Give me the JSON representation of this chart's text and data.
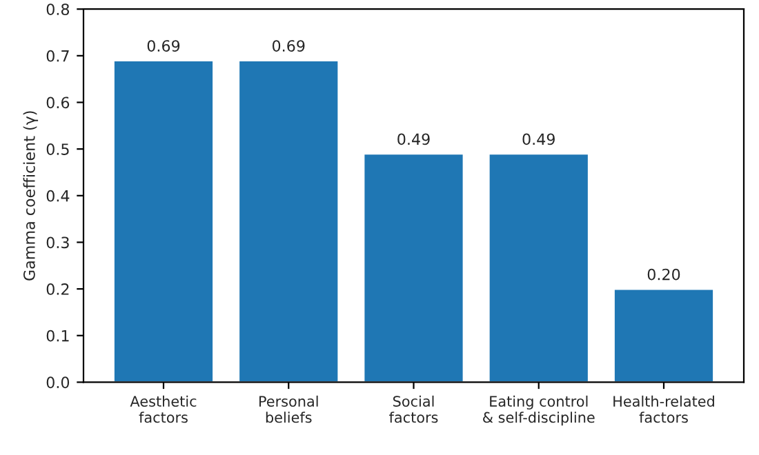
{
  "chart_data": {
    "type": "bar",
    "ylabel": "Gamma coefficient (γ)",
    "categories": [
      "Aesthetic\nfactors",
      "Personal\nbeliefs",
      "Social\nfactors",
      "Eating control\n& self-discipline",
      "Health-related\nfactors"
    ],
    "values": [
      0.69,
      0.69,
      0.49,
      0.49,
      0.2
    ],
    "value_labels": [
      "0.69",
      "0.69",
      "0.49",
      "0.49",
      "0.20"
    ],
    "color": "#1f77b4",
    "ylim": [
      0,
      0.8
    ],
    "yticks": [
      {
        "value": 0,
        "label": "0.0"
      },
      {
        "value": 0.1,
        "label": "0.1"
      },
      {
        "value": 0.2,
        "label": "0.2"
      },
      {
        "value": 0.3,
        "label": "0.3"
      },
      {
        "value": 0.4,
        "label": "0.4"
      },
      {
        "value": 0.5,
        "label": "0.5"
      },
      {
        "value": 0.6,
        "label": "0.6"
      },
      {
        "value": 0.7,
        "label": "0.7"
      },
      {
        "value": 0.8,
        "label": "0.8"
      }
    ]
  }
}
